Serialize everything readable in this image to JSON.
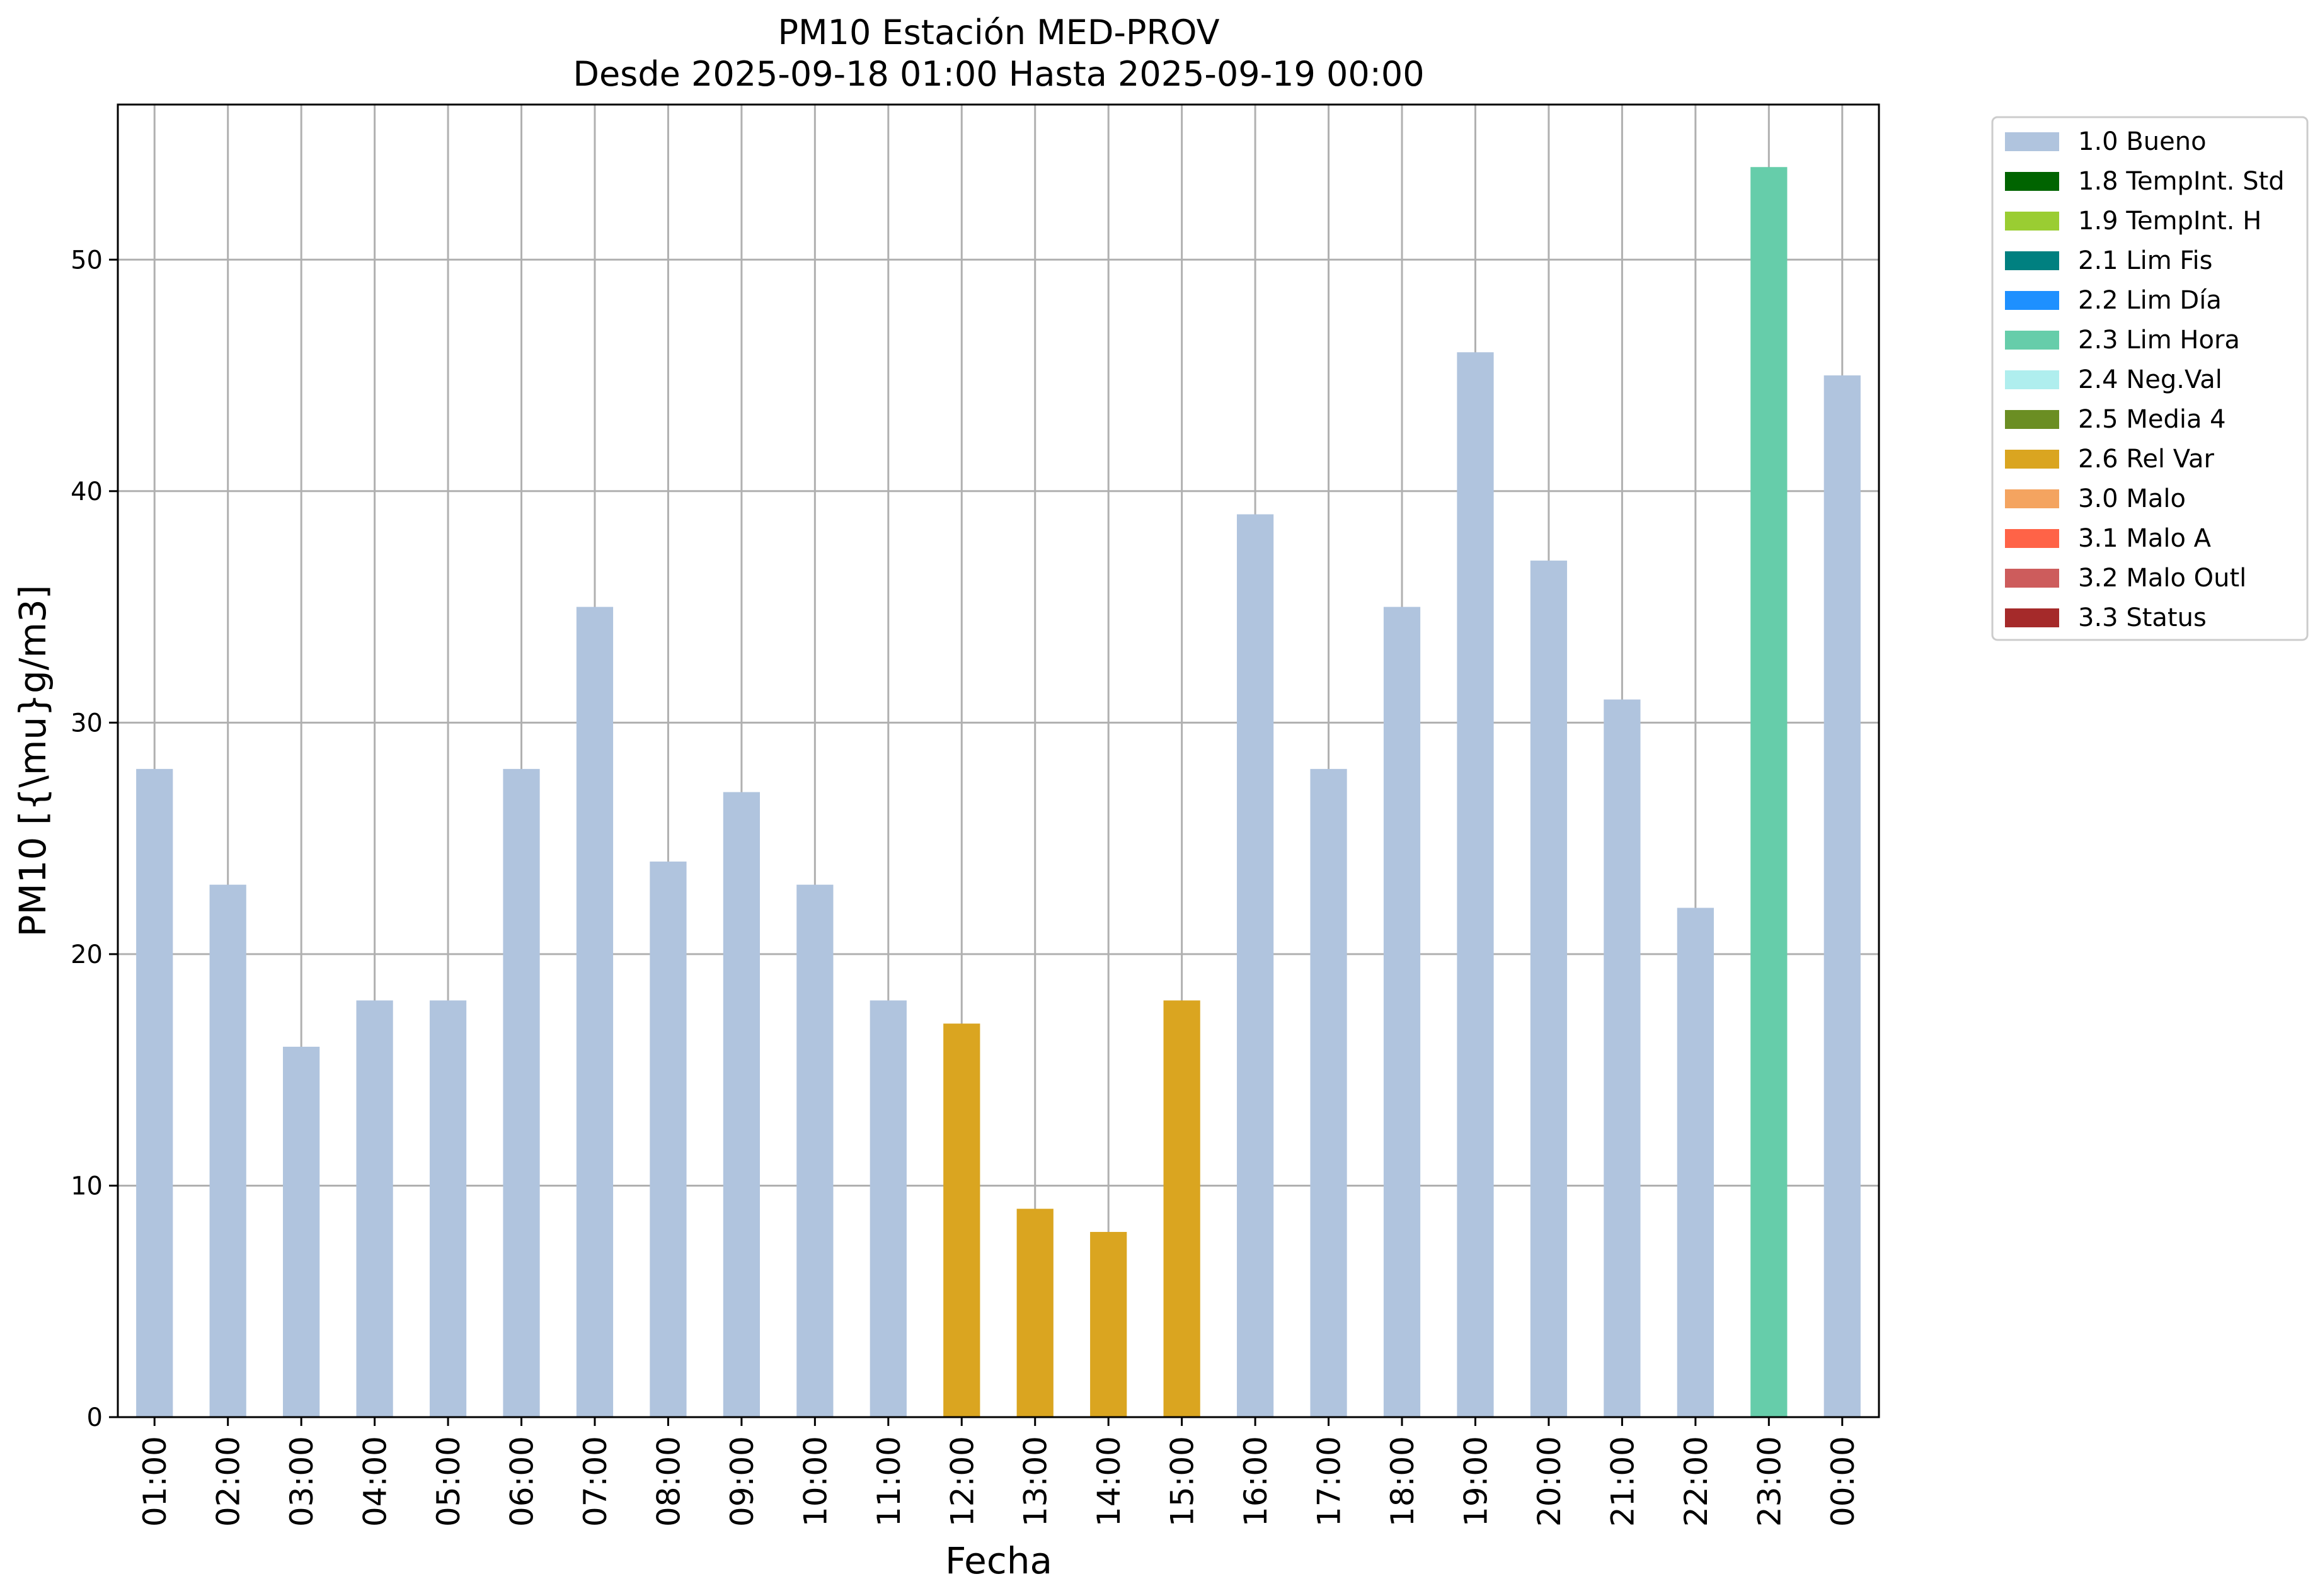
{
  "chart_data": {
    "type": "bar",
    "title": "PM10 Estación MED-PROV",
    "subtitle": "Desde 2025-09-18 01:00 Hasta 2025-09-19 00:00",
    "xlabel": "Fecha",
    "ylabel": "PM10 [{\\mu}g/m3]",
    "ylim": [
      0,
      56.7
    ],
    "yticks": [
      0,
      10,
      20,
      30,
      40,
      50
    ],
    "grid": true,
    "legend_position": "outside-top-right",
    "categories": [
      "01:00",
      "02:00",
      "03:00",
      "04:00",
      "05:00",
      "06:00",
      "07:00",
      "08:00",
      "09:00",
      "10:00",
      "11:00",
      "12:00",
      "13:00",
      "14:00",
      "15:00",
      "16:00",
      "17:00",
      "18:00",
      "19:00",
      "20:00",
      "21:00",
      "22:00",
      "23:00",
      "00:00"
    ],
    "values": [
      28,
      23,
      16,
      18,
      18,
      28,
      35,
      24,
      27,
      23,
      18,
      17,
      9,
      8,
      18,
      39,
      28,
      35,
      46,
      37,
      31,
      22,
      54,
      45
    ],
    "flags": [
      "1.0 Bueno",
      "1.0 Bueno",
      "1.0 Bueno",
      "1.0 Bueno",
      "1.0 Bueno",
      "1.0 Bueno",
      "1.0 Bueno",
      "1.0 Bueno",
      "1.0 Bueno",
      "1.0 Bueno",
      "1.0 Bueno",
      "2.6 Rel Var",
      "2.6 Rel Var",
      "2.6 Rel Var",
      "2.6 Rel Var",
      "1.0 Bueno",
      "1.0 Bueno",
      "1.0 Bueno",
      "1.0 Bueno",
      "1.0 Bueno",
      "1.0 Bueno",
      "1.0 Bueno",
      "2.3 Lim Hora",
      "1.0 Bueno"
    ],
    "legend": [
      {
        "label": "1.0 Bueno",
        "color": "#b0c4de"
      },
      {
        "label": "1.8 TempInt. Std",
        "color": "#006400"
      },
      {
        "label": "1.9 TempInt. H",
        "color": "#9acd32"
      },
      {
        "label": "2.1 Lim Fis",
        "color": "#008080"
      },
      {
        "label": "2.2 Lim Día",
        "color": "#1e90ff"
      },
      {
        "label": "2.3 Lim Hora",
        "color": "#66cdaa"
      },
      {
        "label": "2.4 Neg.Val",
        "color": "#afeeee"
      },
      {
        "label": "2.5 Media 4",
        "color": "#6b8e23"
      },
      {
        "label": "2.6 Rel Var",
        "color": "#daa520"
      },
      {
        "label": "3.0 Malo",
        "color": "#f4a460"
      },
      {
        "label": "3.1 Malo A",
        "color": "#ff6347"
      },
      {
        "label": "3.2 Malo Outl",
        "color": "#cd5c5c"
      },
      {
        "label": "3.3 Status",
        "color": "#a52a2a"
      }
    ]
  }
}
